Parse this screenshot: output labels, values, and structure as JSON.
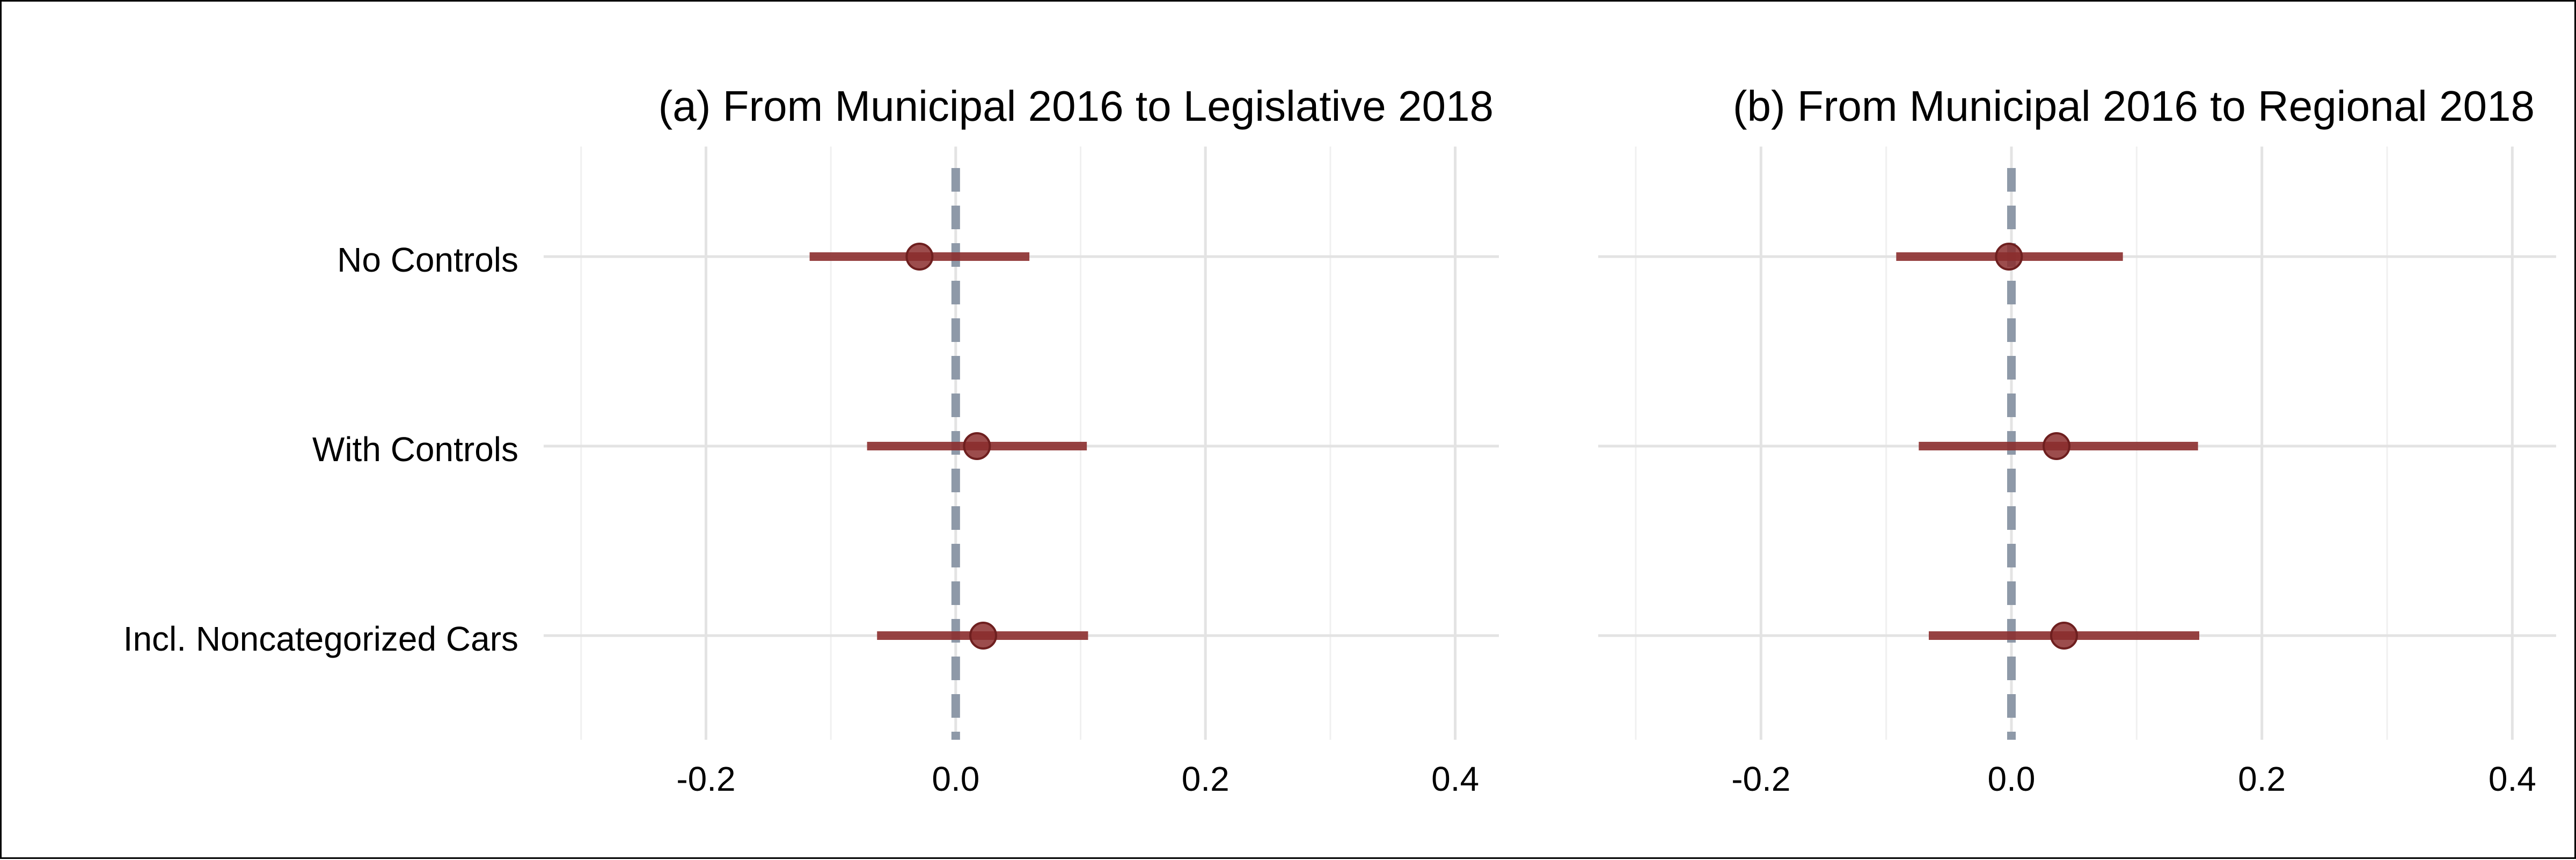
{
  "figure": {
    "row_labels": [
      "No Controls",
      "With Controls",
      "Incl. Noncategorized Cars"
    ]
  },
  "chart_data": [
    {
      "type": "scatter",
      "subtype": "coefficient-plot-with-error-bars",
      "title": "(a) From Municipal 2016 to Legislative 2018",
      "xlabel": "",
      "ylabel": "",
      "xlim": [
        -0.33,
        0.435
      ],
      "x_ticks": [
        -0.2,
        0.0,
        0.2,
        0.4
      ],
      "x_tick_labels": [
        "-0.2",
        "0.0",
        "0.2",
        "0.4"
      ],
      "reference_line": {
        "x": 0.0,
        "style": "dashed",
        "color": "#8e99a8"
      },
      "grid": true,
      "point_color": "#8b2e2e",
      "categories": [
        "No Controls",
        "With Controls",
        "Incl. Noncategorized Cars"
      ],
      "estimates": [
        -0.029,
        0.017,
        0.022
      ],
      "ci_low": [
        -0.117,
        -0.071,
        -0.063
      ],
      "ci_high": [
        0.059,
        0.105,
        0.106
      ]
    },
    {
      "type": "scatter",
      "subtype": "coefficient-plot-with-error-bars",
      "title": "(b) From Municipal 2016 to Regional 2018",
      "xlabel": "",
      "ylabel": "",
      "xlim": [
        -0.33,
        0.435
      ],
      "x_ticks": [
        -0.2,
        0.0,
        0.2,
        0.4
      ],
      "x_tick_labels": [
        "-0.2",
        "0.0",
        "0.2",
        "0.4"
      ],
      "reference_line": {
        "x": 0.0,
        "style": "dashed",
        "color": "#8e99a8"
      },
      "grid": true,
      "point_color": "#8b2e2e",
      "categories": [
        "No Controls",
        "With Controls",
        "Incl. Noncategorized Cars"
      ],
      "estimates": [
        -0.002,
        0.036,
        0.042
      ],
      "ci_low": [
        -0.092,
        -0.074,
        -0.066
      ],
      "ci_high": [
        0.089,
        0.149,
        0.15
      ]
    }
  ]
}
